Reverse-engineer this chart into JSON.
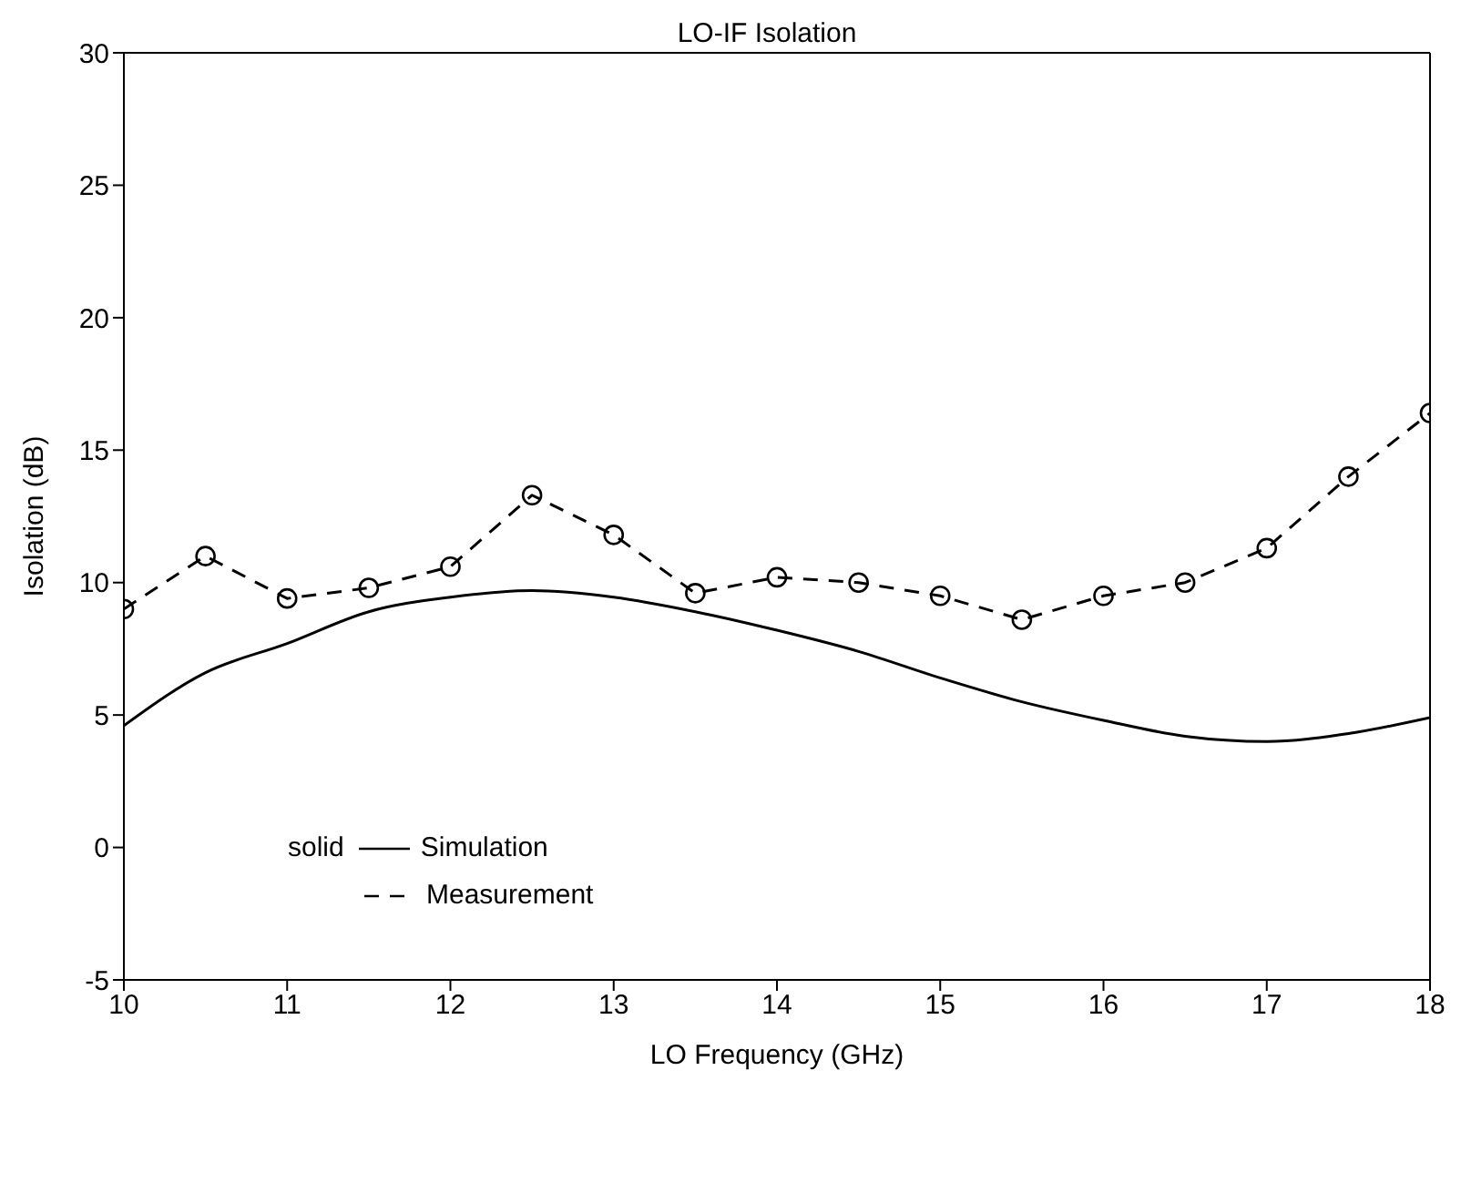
{
  "chart_data": {
    "type": "line",
    "title": "LO-IF Isolation",
    "xlabel": "LO Frequency (GHz)",
    "ylabel": "Isolation (dB)",
    "x": [
      10,
      10.5,
      11,
      11.5,
      12,
      12.5,
      13,
      13.5,
      14,
      14.5,
      15,
      15.5,
      16,
      16.5,
      17,
      17.5,
      18
    ],
    "series": [
      {
        "name": "Simulation",
        "color": "#000000",
        "line_style": "solid",
        "marker": "none",
        "values": [
          4.6,
          6.6,
          7.7,
          8.9,
          9.45,
          9.7,
          9.45,
          8.9,
          8.2,
          7.4,
          6.4,
          5.5,
          4.8,
          4.2,
          4.0,
          4.3,
          4.9
        ]
      },
      {
        "name": "Measurement",
        "color": "#000000",
        "line_style": "dashed",
        "marker": "circle",
        "values": [
          9.0,
          11.0,
          9.4,
          9.8,
          10.6,
          13.3,
          11.8,
          9.6,
          10.2,
          10.0,
          9.5,
          8.6,
          9.5,
          10.0,
          11.3,
          14.0,
          16.4
        ]
      }
    ],
    "annotations": [
      "solid"
    ],
    "xlim": [
      10,
      18
    ],
    "xticks": [
      10,
      11,
      12,
      13,
      14,
      15,
      16,
      17,
      18
    ],
    "ylim": [
      -5,
      30
    ],
    "yticks": [
      -5,
      0,
      5,
      10,
      15,
      20,
      25,
      30
    ],
    "grid": false,
    "legend": "bottom left"
  }
}
